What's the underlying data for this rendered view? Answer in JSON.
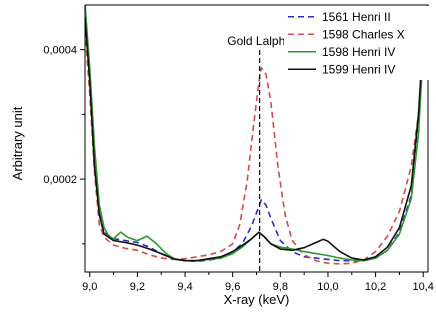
{
  "chart_data": {
    "type": "line",
    "xlabel": "X-ray (keV)",
    "ylabel": "Arbitrary unit",
    "xlim": [
      8.98,
      10.42
    ],
    "ylim": [
      5.65e-05,
      0.000469
    ],
    "x_ticks": [
      9.0,
      9.2,
      9.4,
      9.6,
      9.8,
      10.0,
      10.2,
      10.4
    ],
    "x_tick_labels": [
      "9,0",
      "9,2",
      "9,4",
      "9,6",
      "9,8",
      "10,0",
      "10,2",
      "10,4"
    ],
    "y_ticks": [
      0.0002,
      0.0004
    ],
    "y_tick_labels": [
      "0,0002",
      "0,0004"
    ],
    "grid": false,
    "legend_position": "top-right",
    "annotation": {
      "text": "Gold Lalpha",
      "x": 9.713
    },
    "series": [
      {
        "name": "1561 Henri II",
        "color": "#2c2cc8",
        "dash": "dashed",
        "points": [
          [
            8.98,
            0.00047
          ],
          [
            9.0,
            0.00036
          ],
          [
            9.02,
            0.00022
          ],
          [
            9.04,
            0.00015
          ],
          [
            9.06,
            0.000118
          ],
          [
            9.1,
            0.000108
          ],
          [
            9.15,
            0.000105
          ],
          [
            9.2,
            0.000102
          ],
          [
            9.25,
            9.5e-05
          ],
          [
            9.3,
            8.5e-05
          ],
          [
            9.35,
            7.7e-05
          ],
          [
            9.4,
            7.4e-05
          ],
          [
            9.45,
            7.3e-05
          ],
          [
            9.5,
            7.5e-05
          ],
          [
            9.55,
            7.8e-05
          ],
          [
            9.6,
            8.8e-05
          ],
          [
            9.64,
            0.0001
          ],
          [
            9.68,
            0.000128
          ],
          [
            9.7,
            0.000148
          ],
          [
            9.72,
            0.000168
          ],
          [
            9.74,
            0.00016
          ],
          [
            9.76,
            0.00014
          ],
          [
            9.8,
            0.000105
          ],
          [
            9.85,
            8.8e-05
          ],
          [
            9.9,
            8e-05
          ],
          [
            9.95,
            7.8e-05
          ],
          [
            10.0,
            7.6e-05
          ],
          [
            10.05,
            7.4e-05
          ],
          [
            10.1,
            7.4e-05
          ],
          [
            10.15,
            7.4e-05
          ],
          [
            10.2,
            7.8e-05
          ],
          [
            10.25,
            9e-05
          ],
          [
            10.3,
            0.000118
          ],
          [
            10.35,
            0.000175
          ],
          [
            10.38,
            0.00028
          ],
          [
            10.4,
            0.00041
          ],
          [
            10.42,
            0.00047
          ]
        ]
      },
      {
        "name": "1598 Charles X",
        "color": "#d84a4a",
        "dash": "dashed",
        "points": [
          [
            8.98,
            0.00043
          ],
          [
            9.0,
            0.00033
          ],
          [
            9.02,
            0.00021
          ],
          [
            9.04,
            0.00013
          ],
          [
            9.06,
            0.00011
          ],
          [
            9.1,
            9.8e-05
          ],
          [
            9.15,
            9.3e-05
          ],
          [
            9.2,
            9e-05
          ],
          [
            9.25,
            8.3e-05
          ],
          [
            9.3,
            7.8e-05
          ],
          [
            9.35,
            7.6e-05
          ],
          [
            9.4,
            7.7e-05
          ],
          [
            9.45,
            8e-05
          ],
          [
            9.5,
            8.3e-05
          ],
          [
            9.55,
            8.8e-05
          ],
          [
            9.6,
            0.0001
          ],
          [
            9.63,
            0.00013
          ],
          [
            9.66,
            0.000195
          ],
          [
            9.69,
            0.00029
          ],
          [
            9.71,
            0.00035
          ],
          [
            9.72,
            0.000372
          ],
          [
            9.74,
            0.000362
          ],
          [
            9.76,
            0.00032
          ],
          [
            9.79,
            0.00022
          ],
          [
            9.82,
            0.000145
          ],
          [
            9.85,
            0.000105
          ],
          [
            9.9,
            8.3e-05
          ],
          [
            9.95,
            7.4e-05
          ],
          [
            10.0,
            7e-05
          ],
          [
            10.05,
            6.9e-05
          ],
          [
            10.1,
            7e-05
          ],
          [
            10.15,
            7.5e-05
          ],
          [
            10.2,
            8.8e-05
          ],
          [
            10.25,
            0.000112
          ],
          [
            10.3,
            0.00015
          ],
          [
            10.35,
            0.00022
          ],
          [
            10.38,
            0.0003
          ],
          [
            10.4,
            0.00039
          ],
          [
            10.42,
            0.00046
          ]
        ]
      },
      {
        "name": "1598 Henri IV",
        "color": "#2d9a2d",
        "dash": "solid",
        "points": [
          [
            8.98,
            0.00047
          ],
          [
            9.0,
            0.00037
          ],
          [
            9.02,
            0.00025
          ],
          [
            9.04,
            0.00016
          ],
          [
            9.06,
            0.000125
          ],
          [
            9.08,
            0.000112
          ],
          [
            9.1,
            0.000108
          ],
          [
            9.13,
            0.000118
          ],
          [
            9.16,
            0.00011
          ],
          [
            9.2,
            0.000105
          ],
          [
            9.24,
            0.000112
          ],
          [
            9.28,
            0.0001
          ],
          [
            9.32,
            8.5e-05
          ],
          [
            9.36,
            7.6e-05
          ],
          [
            9.4,
            7.4e-05
          ],
          [
            9.45,
            7.4e-05
          ],
          [
            9.5,
            7.6e-05
          ],
          [
            9.55,
            7.8e-05
          ],
          [
            9.6,
            8.5e-05
          ],
          [
            9.64,
            9.5e-05
          ],
          [
            9.68,
            0.000108
          ],
          [
            9.71,
            0.000118
          ],
          [
            9.73,
            0.000112
          ],
          [
            9.76,
            0.0001
          ],
          [
            9.8,
            9.5e-05
          ],
          [
            9.85,
            9.2e-05
          ],
          [
            9.9,
            8.8e-05
          ],
          [
            9.95,
            8.5e-05
          ],
          [
            10.0,
            8.2e-05
          ],
          [
            10.05,
            7.8e-05
          ],
          [
            10.1,
            7.5e-05
          ],
          [
            10.15,
            7.4e-05
          ],
          [
            10.2,
            7.8e-05
          ],
          [
            10.25,
            9e-05
          ],
          [
            10.3,
            0.000115
          ],
          [
            10.35,
            0.00017
          ],
          [
            10.38,
            0.00027
          ],
          [
            10.4,
            0.0004
          ],
          [
            10.42,
            0.00047
          ]
        ]
      },
      {
        "name": "1599 Henri IV",
        "color": "#111111",
        "dash": "solid",
        "points": [
          [
            8.98,
            0.00045
          ],
          [
            9.0,
            0.00035
          ],
          [
            9.02,
            0.00022
          ],
          [
            9.04,
            0.000145
          ],
          [
            9.06,
            0.000115
          ],
          [
            9.1,
            0.000105
          ],
          [
            9.15,
            0.000102
          ],
          [
            9.2,
            9.8e-05
          ],
          [
            9.25,
            9.2e-05
          ],
          [
            9.3,
            8.5e-05
          ],
          [
            9.35,
            7.7e-05
          ],
          [
            9.4,
            7.4e-05
          ],
          [
            9.45,
            7.4e-05
          ],
          [
            9.5,
            7.7e-05
          ],
          [
            9.55,
            8e-05
          ],
          [
            9.6,
            8.8e-05
          ],
          [
            9.65,
            0.0001
          ],
          [
            9.68,
            0.000108
          ],
          [
            9.71,
            0.000118
          ],
          [
            9.73,
            0.000112
          ],
          [
            9.76,
            0.0001
          ],
          [
            9.8,
            9.2e-05
          ],
          [
            9.85,
            9e-05
          ],
          [
            9.9,
            9.4e-05
          ],
          [
            9.95,
            0.000102
          ],
          [
            9.98,
            0.000107
          ],
          [
            10.0,
            0.000104
          ],
          [
            10.05,
            8.8e-05
          ],
          [
            10.1,
            7.8e-05
          ],
          [
            10.15,
            7.5e-05
          ],
          [
            10.2,
            8e-05
          ],
          [
            10.25,
            9.5e-05
          ],
          [
            10.3,
            0.000125
          ],
          [
            10.35,
            0.00019
          ],
          [
            10.38,
            0.0003
          ],
          [
            10.4,
            0.00042
          ],
          [
            10.42,
            0.00047
          ]
        ]
      }
    ]
  }
}
